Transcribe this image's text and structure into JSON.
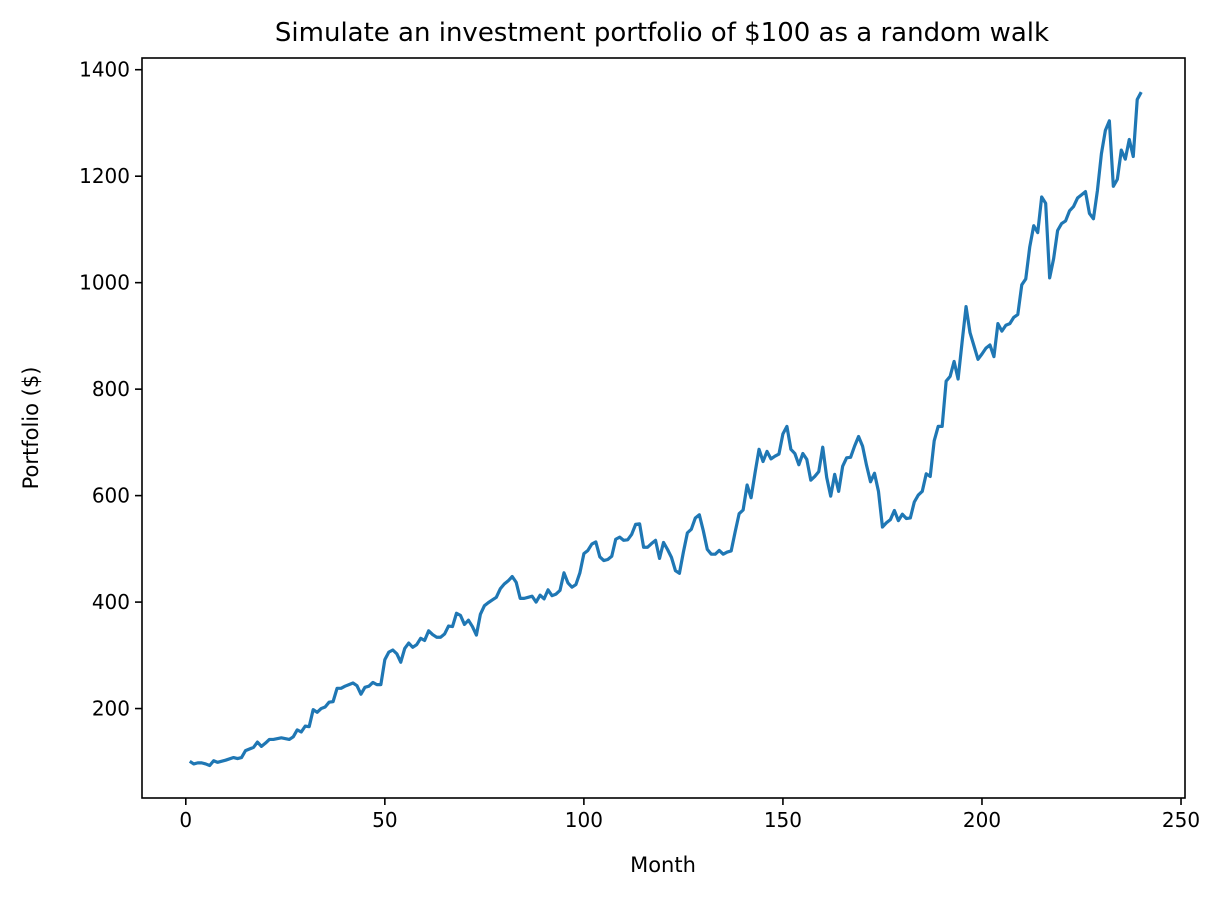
{
  "chart_data": {
    "type": "line",
    "title": "Simulate an investment portfolio of $100 as a random walk",
    "xlabel": "Month",
    "ylabel": "Portfolio ($)",
    "xlim": [
      -11,
      251
    ],
    "ylim": [
      32,
      1422
    ],
    "xticks": [
      0,
      50,
      100,
      150,
      200,
      250
    ],
    "yticks": [
      200,
      400,
      600,
      800,
      1000,
      1200,
      1400
    ],
    "xtick_labels": [
      "0",
      "50",
      "100",
      "150",
      "200",
      "250"
    ],
    "ytick_labels": [
      "200",
      "400",
      "600",
      "800",
      "1000",
      "1200",
      "1400"
    ],
    "grid": false,
    "legend": false,
    "color": "#1f77b4",
    "series": [
      {
        "x": [
          1,
          2,
          3,
          4,
          5,
          6,
          7,
          8,
          10,
          12,
          13,
          14,
          15,
          17,
          18,
          19,
          20,
          21,
          22,
          24,
          26,
          27,
          28,
          29,
          30,
          31,
          32,
          33,
          34,
          35,
          36,
          37,
          38,
          39,
          40,
          41,
          42,
          43,
          44,
          45,
          46,
          47,
          48,
          49,
          50,
          51,
          52,
          53,
          54,
          55,
          56,
          57,
          58,
          59,
          60,
          61,
          62,
          63,
          64,
          65,
          66,
          67,
          68,
          69,
          70,
          71,
          72,
          73,
          74,
          75,
          76,
          77,
          78,
          79,
          80,
          81,
          82,
          83,
          84,
          85,
          86,
          87,
          88,
          89,
          90,
          91,
          92,
          93,
          94,
          95,
          96,
          97,
          98,
          99,
          100,
          101,
          102,
          103,
          104,
          105,
          106,
          107,
          108,
          109,
          110,
          111,
          112,
          113,
          114,
          115,
          116,
          117,
          118,
          119,
          120,
          121,
          122,
          123,
          124,
          125,
          126,
          127,
          128,
          129,
          130,
          131,
          132,
          133,
          134,
          135,
          136,
          137,
          138,
          139,
          140,
          141,
          142,
          143,
          144,
          145,
          146,
          147,
          148,
          149,
          150,
          151,
          152,
          153,
          154,
          155,
          156,
          157,
          158,
          159,
          160,
          161,
          162,
          163,
          164,
          165,
          166,
          167,
          168,
          169,
          170,
          171,
          172,
          173,
          174,
          175,
          176,
          177,
          178,
          179,
          180,
          181,
          182,
          183,
          184,
          185,
          186,
          187,
          188,
          189,
          190,
          191,
          192,
          193,
          194,
          195,
          196,
          197,
          198,
          199,
          200,
          201,
          202,
          203,
          204,
          205,
          206,
          207,
          208,
          209,
          210,
          211,
          212,
          213,
          214,
          215,
          216,
          217,
          218,
          219,
          220,
          221,
          222,
          223,
          224,
          225,
          226,
          227,
          228,
          229,
          230,
          231,
          232,
          233,
          234,
          235,
          236,
          237,
          238,
          239,
          240
        ],
        "values": [
          101,
          96,
          98,
          98,
          96,
          93,
          102,
          99,
          103,
          108,
          106,
          108,
          121,
          127,
          137,
          129,
          135,
          142,
          142,
          145,
          142,
          147,
          160,
          156,
          167,
          166,
          198,
          193,
          200,
          203,
          212,
          213,
          238,
          238,
          242,
          245,
          248,
          243,
          227,
          240,
          242,
          249,
          245,
          245,
          292,
          306,
          310,
          303,
          287,
          313,
          323,
          315,
          320,
          332,
          328,
          346,
          339,
          334,
          334,
          340,
          355,
          354,
          379,
          375,
          358,
          366,
          354,
          338,
          377,
          393,
          399,
          404,
          409,
          425,
          434,
          440,
          448,
          437,
          407,
          407,
          409,
          411,
          400,
          413,
          406,
          423,
          412,
          415,
          422,
          455,
          436,
          428,
          433,
          455,
          491,
          497,
          509,
          513,
          485,
          478,
          480,
          486,
          518,
          522,
          516,
          517,
          527,
          546,
          547,
          503,
          503,
          510,
          516,
          482,
          512,
          499,
          484,
          459,
          454,
          494,
          530,
          537,
          558,
          564,
          534,
          499,
          490,
          490,
          497,
          490,
          494,
          496,
          532,
          566,
          573,
          620,
          596,
          643,
          687,
          664,
          683,
          669,
          674,
          678,
          716,
          730,
          687,
          679,
          658,
          679,
          668,
          629,
          636,
          645,
          691,
          634,
          599,
          640,
          608,
          655,
          671,
          672,
          693,
          711,
          693,
          657,
          626,
          642,
          608,
          541,
          549,
          555,
          572,
          553,
          565,
          557,
          558,
          588,
          601,
          608,
          641,
          636,
          703,
          730,
          730,
          815,
          824,
          852,
          819,
          888,
          955,
          906,
          881,
          856,
          866,
          877,
          883,
          861,
          923,
          909,
          920,
          923,
          935,
          940,
          996,
          1007,
          1067,
          1107,
          1094,
          1161,
          1149,
          1009,
          1045,
          1098,
          1111,
          1116,
          1135,
          1143,
          1159,
          1165,
          1171,
          1130,
          1120,
          1173,
          1242,
          1286,
          1304,
          1181,
          1194,
          1249,
          1232,
          1269,
          1237,
          1344,
          1358
        ]
      }
    ]
  }
}
